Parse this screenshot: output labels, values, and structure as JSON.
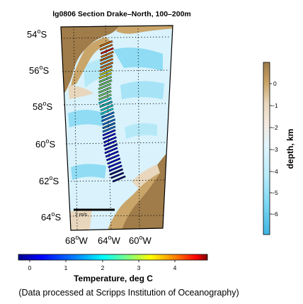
{
  "title": "lg0806 Section Drake–North, 100–200m",
  "lat_labels": [
    "54",
    "56",
    "58",
    "60",
    "62",
    "64"
  ],
  "lon_labels": [
    "68",
    "64",
    "60"
  ],
  "lat_hemisphere": "S",
  "lon_hemisphere": "W",
  "degree_symbol": "o",
  "scale_label": "2 m/s",
  "depth_colorbar": {
    "label": "depth, km",
    "ticks": [
      "0",
      "−1",
      "−2",
      "−3",
      "−4",
      "−5",
      "−6"
    ],
    "colors": [
      "#a07c4a",
      "#c9a56a",
      "#e8d7bd",
      "#f5e9e0",
      "#e2f5fc",
      "#b8ebf9",
      "#7ed8f3",
      "#3eb5e3"
    ]
  },
  "temperature_colorbar": {
    "label": "Temperature, deg C",
    "ticks": [
      "0",
      "1",
      "2",
      "3",
      "4"
    ],
    "colors": [
      "#00008f",
      "#0000ff",
      "#0080ff",
      "#00ffff",
      "#80ff80",
      "#ffff00",
      "#ff8000",
      "#ff0000",
      "#800000"
    ]
  },
  "credit": "(Data processed at Scripps Institution of Oceanography)",
  "vectors": [
    {
      "lat": 54.4,
      "lon": 64.6,
      "t": 3.8
    },
    {
      "lat": 54.6,
      "lon": 64.6,
      "t": 3.9
    },
    {
      "lat": 54.8,
      "lon": 64.5,
      "t": 4.0
    },
    {
      "lat": 55.0,
      "lon": 64.5,
      "t": 3.6
    },
    {
      "lat": 55.2,
      "lon": 64.6,
      "t": 3.8
    },
    {
      "lat": 55.4,
      "lon": 64.6,
      "t": 3.7
    },
    {
      "lat": 55.6,
      "lon": 64.6,
      "t": 3.5
    },
    {
      "lat": 55.8,
      "lon": 64.7,
      "t": 3.3
    },
    {
      "lat": 56.0,
      "lon": 64.7,
      "t": 3.0
    },
    {
      "lat": 56.2,
      "lon": 64.8,
      "t": 2.8
    },
    {
      "lat": 56.4,
      "lon": 64.8,
      "t": 2.6
    },
    {
      "lat": 56.6,
      "lon": 64.8,
      "t": 2.4
    },
    {
      "lat": 56.8,
      "lon": 64.9,
      "t": 2.2
    },
    {
      "lat": 57.0,
      "lon": 64.9,
      "t": 2.4
    },
    {
      "lat": 57.2,
      "lon": 64.9,
      "t": 2.6
    },
    {
      "lat": 57.4,
      "lon": 64.9,
      "t": 2.0
    },
    {
      "lat": 57.6,
      "lon": 64.9,
      "t": 1.9
    },
    {
      "lat": 57.8,
      "lon": 64.8,
      "t": 1.8
    },
    {
      "lat": 58.0,
      "lon": 64.7,
      "t": 1.6
    },
    {
      "lat": 58.2,
      "lon": 64.7,
      "t": 1.4
    },
    {
      "lat": 58.4,
      "lon": 64.6,
      "t": 1.3
    },
    {
      "lat": 58.6,
      "lon": 64.6,
      "t": 1.1
    },
    {
      "lat": 58.8,
      "lon": 64.5,
      "t": 0.9
    },
    {
      "lat": 59.0,
      "lon": 64.5,
      "t": 0.8
    },
    {
      "lat": 59.2,
      "lon": 64.5,
      "t": 0.7
    },
    {
      "lat": 59.4,
      "lon": 64.5,
      "t": 0.6
    },
    {
      "lat": 59.6,
      "lon": 64.5,
      "t": 0.5
    },
    {
      "lat": 59.8,
      "lon": 64.4,
      "t": 0.4
    },
    {
      "lat": 60.0,
      "lon": 64.4,
      "t": 0.4
    },
    {
      "lat": 60.2,
      "lon": 64.3,
      "t": 0.3
    },
    {
      "lat": 60.4,
      "lon": 64.3,
      "t": 0.3
    },
    {
      "lat": 60.6,
      "lon": 64.2,
      "t": 0.2
    },
    {
      "lat": 60.8,
      "lon": 64.1,
      "t": 0.2
    },
    {
      "lat": 61.0,
      "lon": 64.0,
      "t": 0.1
    },
    {
      "lat": 61.2,
      "lon": 63.9,
      "t": 0.1
    },
    {
      "lat": 61.4,
      "lon": 63.8,
      "t": 0.1
    },
    {
      "lat": 61.6,
      "lon": 63.7,
      "t": 0.0
    },
    {
      "lat": 61.8,
      "lon": 63.6,
      "t": 0.0
    },
    {
      "lat": 62.0,
      "lon": 63.4,
      "t": 0.0
    }
  ]
}
